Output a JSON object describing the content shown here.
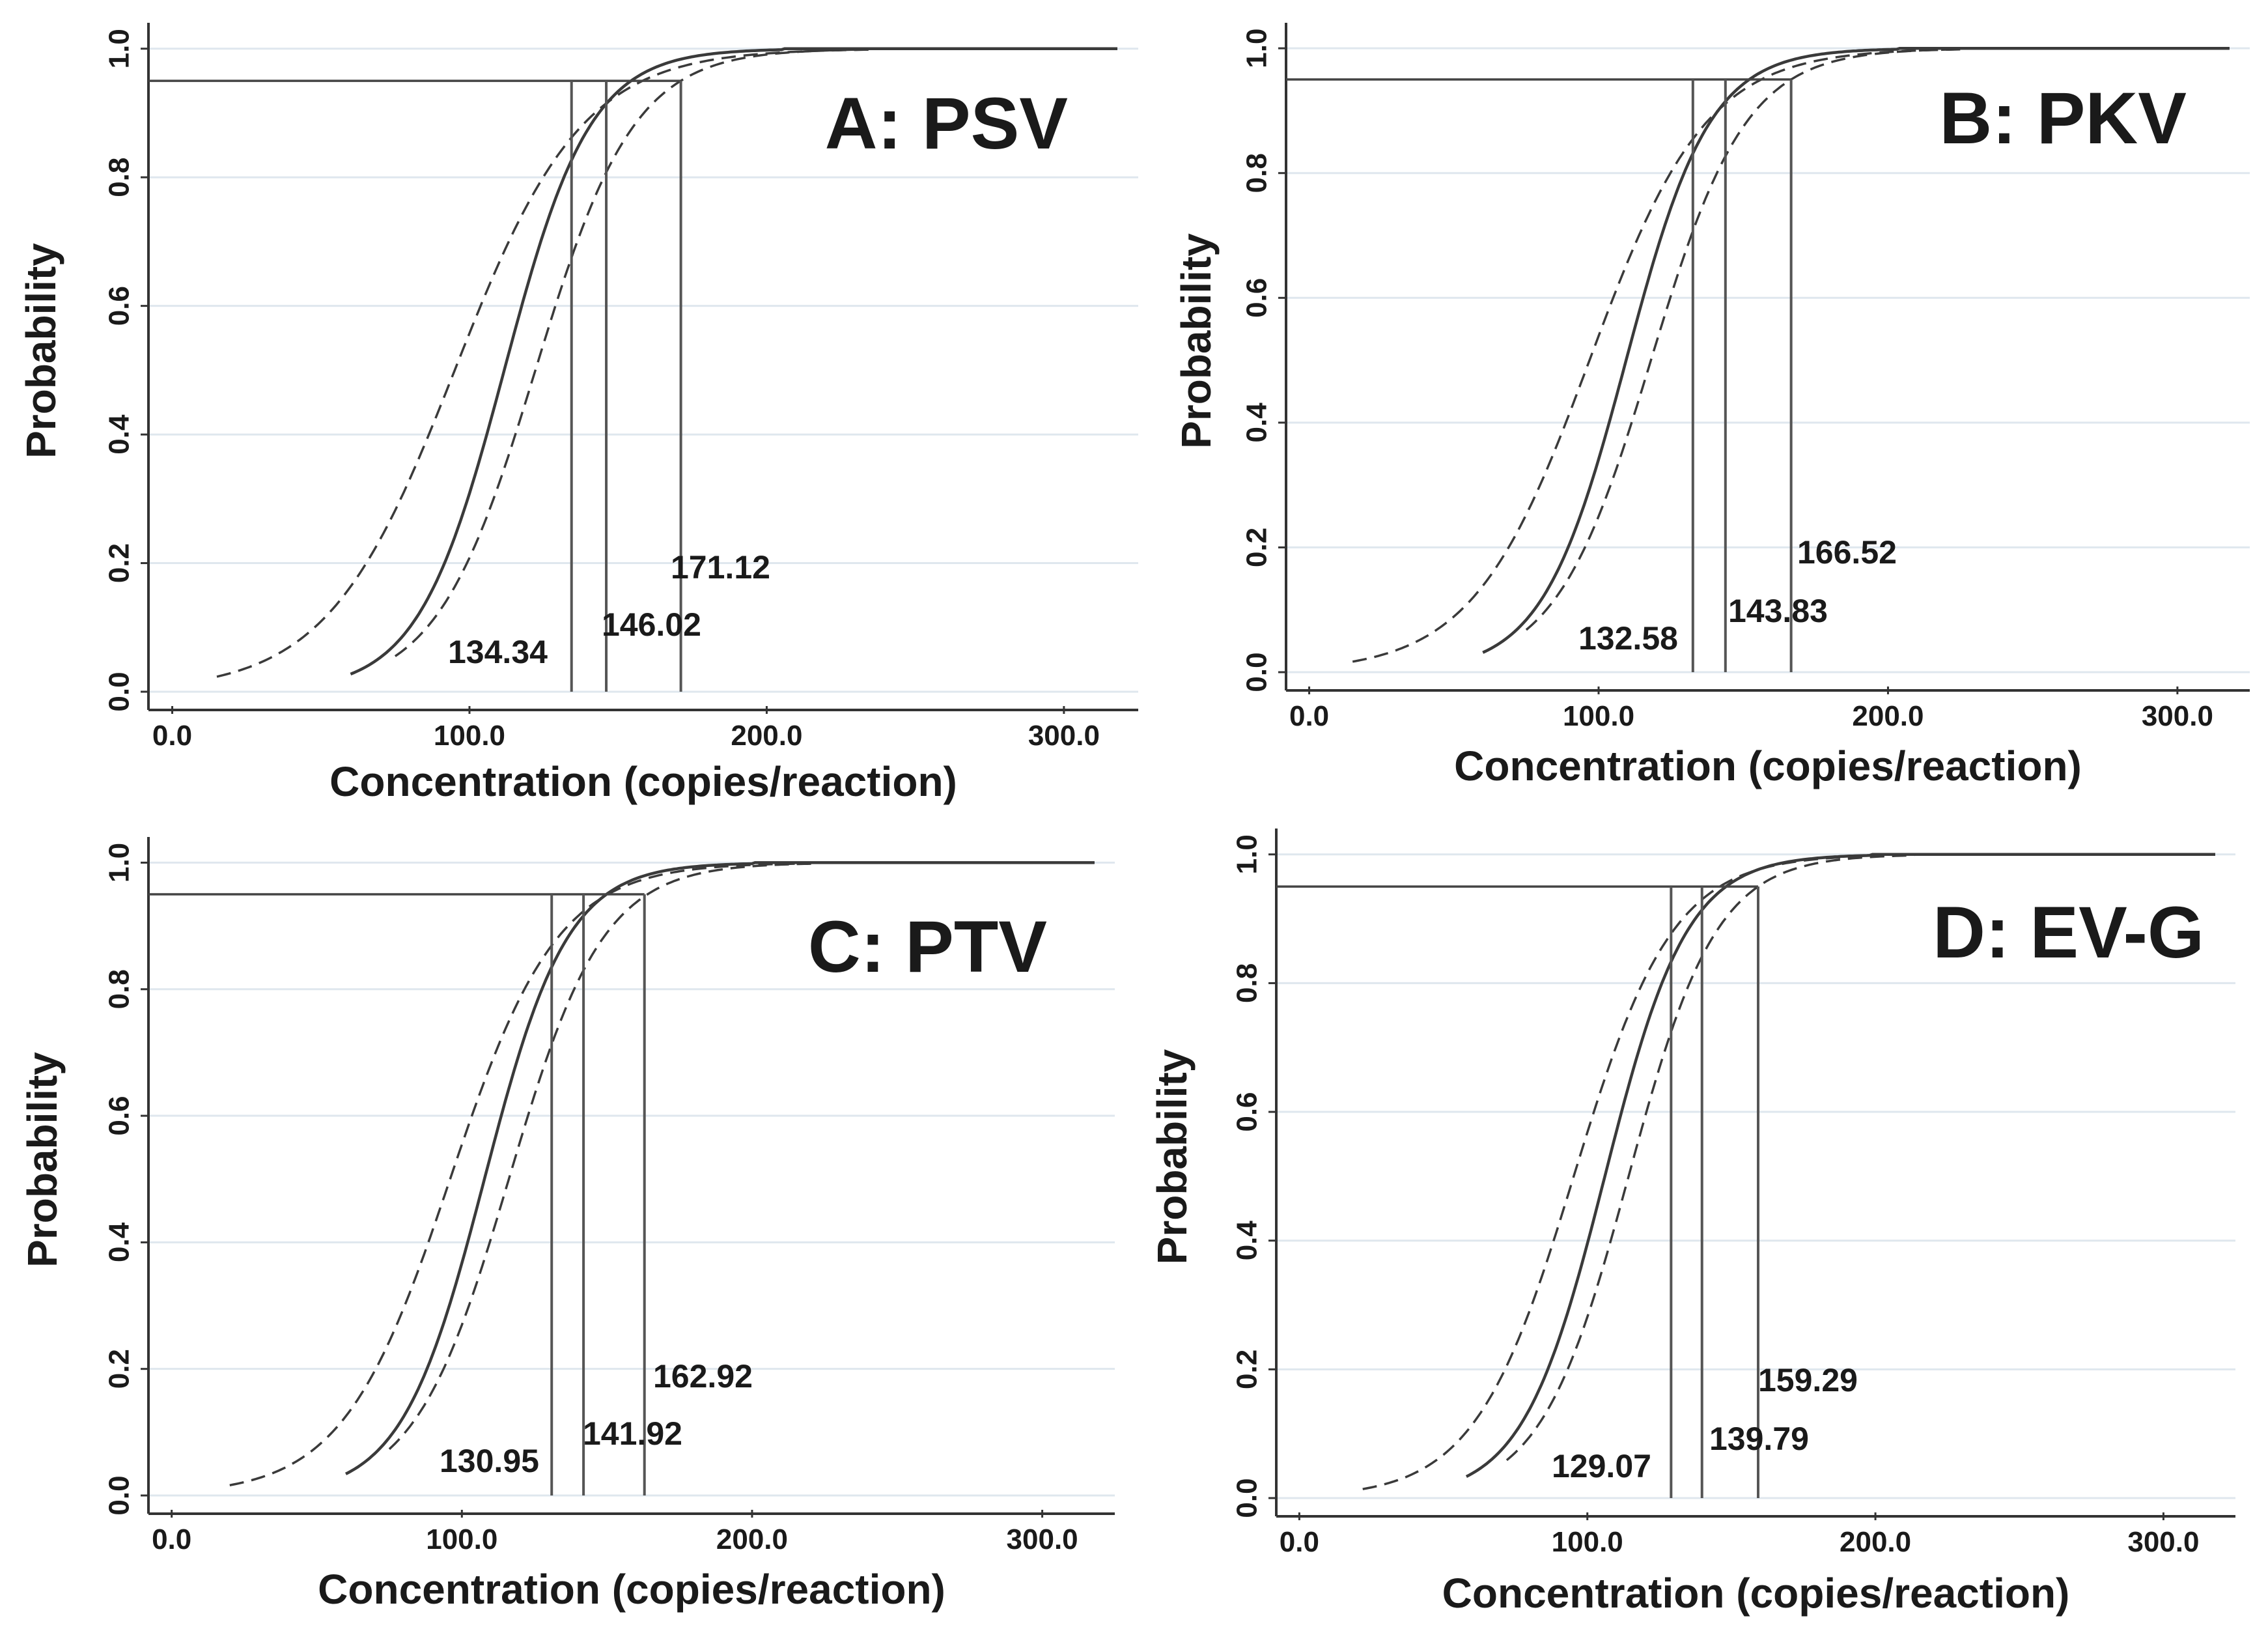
{
  "chart_data": [
    {
      "type": "line",
      "title": "A: PSV",
      "xlabel": "Concentration (copies/reaction)",
      "ylabel": "Probability",
      "xlim": [
        -8,
        325
      ],
      "ylim": [
        0,
        1.02
      ],
      "xticks": [
        "0.0",
        "100.0",
        "200.0",
        "300.0"
      ],
      "yticks": [
        "0.0",
        "0.2",
        "0.4",
        "0.6",
        "0.8",
        "1.0"
      ],
      "grid": true,
      "reference_probability": 0.95,
      "series": [
        {
          "name": "lower confidence limit",
          "style": "dashed",
          "start": 15,
          "mid": 95.04,
          "steep": 0.0466
        },
        {
          "name": "fitted probit curve",
          "style": "solid",
          "start": 60,
          "mid": 111.7,
          "steep": 0.069
        },
        {
          "name": "upper confidence limit",
          "style": "dashed",
          "start": 75,
          "mid": 122.18,
          "steep": 0.0602
        }
      ],
      "ci_values": [
        134.34,
        146.02,
        171.12
      ],
      "labels": [
        "134.34",
        "146.02",
        "171.12"
      ]
    },
    {
      "type": "line",
      "title": "B: PKV",
      "xlabel": "Concentration (copies/reaction)",
      "ylabel": "Probability",
      "xlim": [
        -8,
        325
      ],
      "ylim": [
        0,
        1.02
      ],
      "xticks": [
        "0.0",
        "100.0",
        "200.0",
        "300.0"
      ],
      "yticks": [
        "0.0",
        "0.2",
        "0.4",
        "0.6",
        "0.8",
        "1.0"
      ],
      "grid": true,
      "reference_probability": 0.95,
      "series": [
        {
          "name": "lower confidence limit",
          "style": "dashed",
          "start": 15,
          "mid": 96.86,
          "steep": 0.0496
        },
        {
          "name": "fitted probit curve",
          "style": "solid",
          "start": 60,
          "mid": 109.51,
          "steep": 0.0692
        },
        {
          "name": "upper confidence limit",
          "style": "dashed",
          "start": 75,
          "mid": 118.08,
          "steep": 0.0608
        }
      ],
      "ci_values": [
        132.58,
        143.83,
        166.52
      ],
      "labels": [
        "132.58",
        "143.83",
        "166.52"
      ]
    },
    {
      "type": "line",
      "title": "C: PTV",
      "xlabel": "Concentration (copies/reaction)",
      "ylabel": "Probability",
      "xlim": [
        -8,
        325
      ],
      "ylim": [
        0,
        1.02
      ],
      "xticks": [
        "0.0",
        "100.0",
        "200.0",
        "300.0"
      ],
      "yticks": [
        "0.0",
        "0.2",
        "0.4",
        "0.6",
        "0.8",
        "1.0"
      ],
      "grid": true,
      "reference_probability": 0.95,
      "series": [
        {
          "name": "lower confidence limit",
          "style": "dashed",
          "start": 20,
          "mid": 95.95,
          "steep": 0.0541
        },
        {
          "name": "fitted probit curve",
          "style": "solid",
          "start": 60,
          "mid": 107.78,
          "steep": 0.07
        },
        {
          "name": "upper confidence limit",
          "style": "dashed",
          "start": 75,
          "mid": 116.19,
          "steep": 0.0616
        }
      ],
      "ci_values": [
        130.95,
        141.92,
        162.92
      ],
      "labels": [
        "130.95",
        "141.92",
        "162.92"
      ]
    },
    {
      "type": "line",
      "title": "D: EV-G",
      "xlabel": "Concentration (copies/reaction)",
      "ylabel": "Probability",
      "xlim": [
        -8,
        325
      ],
      "ylim": [
        0,
        1.02
      ],
      "xticks": [
        "0.0",
        "100.0",
        "200.0",
        "300.0"
      ],
      "yticks": [
        "0.0",
        "0.2",
        "0.4",
        "0.6",
        "0.8",
        "1.0"
      ],
      "grid": true,
      "reference_probability": 0.95,
      "series": [
        {
          "name": "lower confidence limit",
          "style": "dashed",
          "start": 22,
          "mid": 95.28,
          "steep": 0.0581
        },
        {
          "name": "fitted probit curve",
          "style": "solid",
          "start": 58,
          "mid": 106.08,
          "steep": 0.07
        },
        {
          "name": "upper confidence limit",
          "style": "dashed",
          "start": 72,
          "mid": 114.32,
          "steep": 0.0655
        }
      ],
      "ci_values": [
        129.07,
        139.79,
        159.29
      ],
      "labels": [
        "129.07",
        "139.79",
        "159.29"
      ]
    }
  ]
}
